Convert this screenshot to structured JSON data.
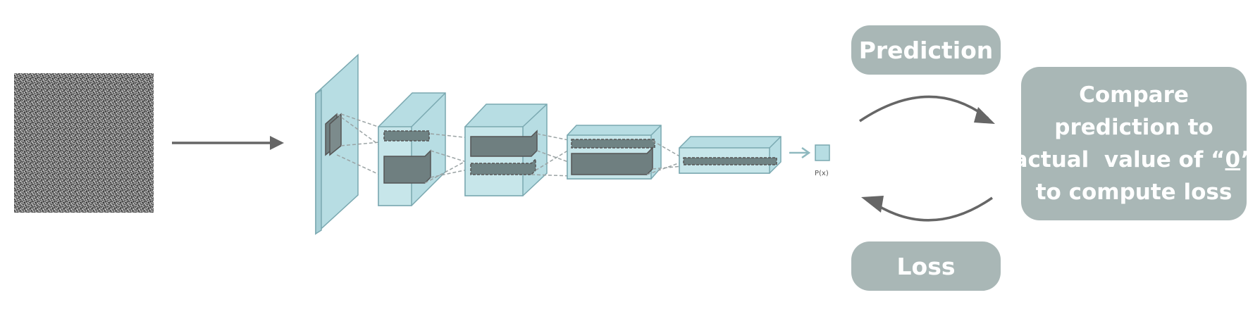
{
  "diagram": {
    "input_image": {
      "description_icon": "noise-image-icon"
    },
    "network": {
      "output_label": "P(x)"
    },
    "prediction_label": "Prediction",
    "loss_label": "Loss",
    "compare": {
      "line1": "Compare",
      "line2": "prediction to",
      "line3_prefix": "actual  value of “",
      "line3_value": "0",
      "line3_suffix": "”",
      "line4": "to compute loss"
    },
    "colors": {
      "box_fill": "#a9b7b6",
      "box_text": "#ffffff",
      "arrow": "#666666",
      "layer_fill": "#b7dde3",
      "layer_stroke": "#7aa8b0",
      "kernel_fill": "#6f7f80"
    }
  }
}
